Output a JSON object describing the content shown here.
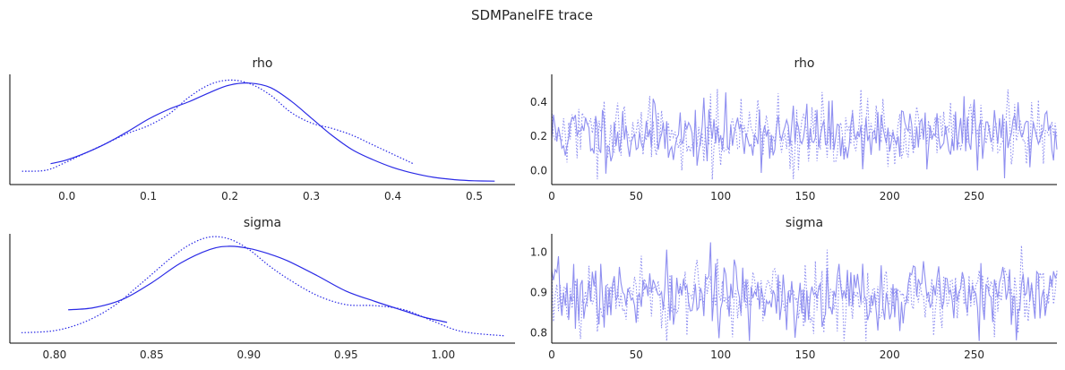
{
  "figure": {
    "title": "SDMPanelFE trace",
    "colors": {
      "line": "#2a2ae6",
      "trace": "#8f8ff0",
      "axis": "#000000",
      "text": "#262626"
    }
  },
  "chart_data": [
    {
      "type": "line",
      "panel": "density",
      "title": "rho",
      "xlabel": "",
      "ylabel": "",
      "xlim": [
        -0.07,
        0.55
      ],
      "ylim": [
        0.0,
        2.9
      ],
      "xticks": [
        "0.0",
        "0.1",
        "0.2",
        "0.3",
        "0.4",
        "0.5"
      ],
      "series": [
        {
          "style": "solid",
          "x": [
            -0.02,
            0.0,
            0.025,
            0.05,
            0.075,
            0.1,
            0.125,
            0.15,
            0.175,
            0.2,
            0.225,
            0.25,
            0.275,
            0.3,
            0.325,
            0.35,
            0.375,
            0.4,
            0.425,
            0.45,
            0.475,
            0.5,
            0.525
          ],
          "y": [
            0.55,
            0.65,
            0.85,
            1.1,
            1.4,
            1.72,
            1.98,
            2.18,
            2.42,
            2.62,
            2.67,
            2.55,
            2.2,
            1.75,
            1.3,
            0.92,
            0.66,
            0.45,
            0.3,
            0.19,
            0.13,
            0.1,
            0.09
          ]
        },
        {
          "style": "dotted",
          "x": [
            -0.055,
            -0.025,
            0.0,
            0.025,
            0.05,
            0.075,
            0.1,
            0.125,
            0.15,
            0.175,
            0.2,
            0.225,
            0.25,
            0.275,
            0.3,
            0.325,
            0.35,
            0.375,
            0.4,
            0.425
          ],
          "y": [
            0.35,
            0.38,
            0.6,
            0.85,
            1.1,
            1.35,
            1.55,
            1.85,
            2.3,
            2.63,
            2.75,
            2.65,
            2.35,
            1.9,
            1.62,
            1.48,
            1.3,
            1.05,
            0.8,
            0.55
          ]
        }
      ]
    },
    {
      "type": "line",
      "panel": "trace",
      "title": "rho",
      "xlabel": "",
      "ylabel": "",
      "xlim": [
        0,
        299
      ],
      "ylim": [
        -0.08,
        0.56
      ],
      "xticks": [
        "0",
        "50",
        "100",
        "150",
        "200",
        "250"
      ],
      "yticks": [
        "0.0",
        "0.2",
        "0.4"
      ],
      "series": [
        {
          "style": "solid",
          "x_start": 0,
          "x_end": 299,
          "mean": 0.21,
          "spread": 0.09,
          "seed": 11
        },
        {
          "style": "dotted",
          "x_start": 0,
          "x_end": 299,
          "mean": 0.21,
          "spread": 0.1,
          "seed": 29
        }
      ]
    },
    {
      "type": "line",
      "panel": "density",
      "title": "sigma",
      "xlabel": "",
      "ylabel": "",
      "xlim": [
        0.777,
        1.037
      ],
      "ylim": [
        0.0,
        10.5
      ],
      "xticks": [
        "0.80",
        "0.85",
        "0.90",
        "0.95",
        "1.00"
      ],
      "series": [
        {
          "style": "solid",
          "x": [
            0.807,
            0.82,
            0.835,
            0.85,
            0.865,
            0.88,
            0.89,
            0.9,
            0.91,
            0.92,
            0.935,
            0.95,
            0.965,
            0.98,
            0.99,
            1.002
          ],
          "y": [
            3.2,
            3.4,
            4.2,
            5.8,
            7.7,
            9.0,
            9.3,
            9.1,
            8.6,
            7.9,
            6.5,
            5.0,
            4.0,
            3.1,
            2.5,
            2.0
          ]
        },
        {
          "style": "dotted",
          "x": [
            0.783,
            0.8,
            0.815,
            0.83,
            0.845,
            0.86,
            0.87,
            0.88,
            0.89,
            0.9,
            0.91,
            0.92,
            0.935,
            0.95,
            0.965,
            0.98,
            0.995,
            1.01,
            1.032
          ],
          "y": [
            1.0,
            1.2,
            2.0,
            3.5,
            5.8,
            8.2,
            9.5,
            10.2,
            10.0,
            9.0,
            7.5,
            6.2,
            4.6,
            3.7,
            3.6,
            3.2,
            2.1,
            1.1,
            0.7
          ]
        }
      ]
    },
    {
      "type": "line",
      "panel": "trace",
      "title": "sigma",
      "xlabel": "",
      "ylabel": "",
      "xlim": [
        0,
        299
      ],
      "ylim": [
        0.775,
        1.045
      ],
      "xticks": [
        "0",
        "50",
        "100",
        "150",
        "200",
        "250"
      ],
      "yticks": [
        "0.8",
        "0.9",
        "1.0"
      ],
      "series": [
        {
          "style": "solid",
          "x_start": 0,
          "x_end": 299,
          "mean": 0.893,
          "spread": 0.042,
          "seed": 7
        },
        {
          "style": "dotted",
          "x_start": 0,
          "x_end": 299,
          "mean": 0.893,
          "spread": 0.045,
          "seed": 53
        }
      ]
    }
  ]
}
